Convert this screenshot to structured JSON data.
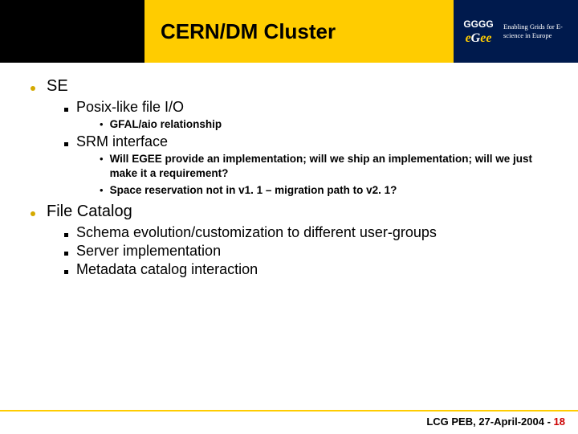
{
  "colors": {
    "accent_yellow": "#ffcc00",
    "logo_bg": "#001a4d",
    "bullet1": "#d4a900",
    "pagenum": "#cc0000"
  },
  "header": {
    "title": "CERN/DM Cluster",
    "logo_acronym": "eGee",
    "logo_tagline": "Enabling Grids for E-science in Europe"
  },
  "bullets": [
    {
      "text": "SE",
      "children": [
        {
          "text": "Posix-like file I/O",
          "children": [
            {
              "text": "GFAL/aio relationship"
            }
          ]
        },
        {
          "text": "SRM interface",
          "children": [
            {
              "text": "Will EGEE provide an implementation; will we ship an implementation; will we just make it a requirement?"
            },
            {
              "text": "Space reservation not in v1. 1 – migration path to v2. 1?"
            }
          ]
        }
      ]
    },
    {
      "text": "File Catalog",
      "children": [
        {
          "text": "Schema evolution/customization to different user-groups"
        },
        {
          "text": "Server implementation"
        },
        {
          "text": "Metadata catalog interaction"
        }
      ]
    }
  ],
  "footer": {
    "prefix": "LCG PEB, 27-April-2004 - ",
    "page": "18"
  }
}
